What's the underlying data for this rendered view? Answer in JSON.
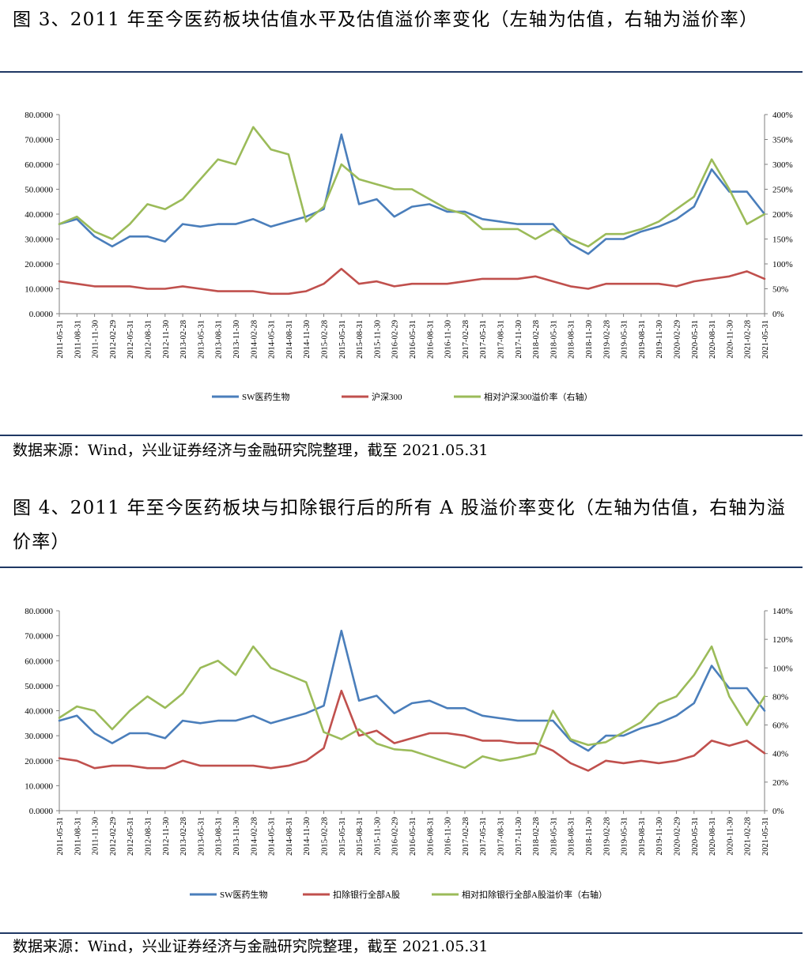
{
  "figures": [
    {
      "title": "图 3、2011 年至今医药板块估值水平及估值溢价率变化（左轴为估值，右轴为溢价率）",
      "source": "数据来源：Wind，兴业证券经济与金融研究院整理，截至 2021.05.31"
    },
    {
      "title": "图 4、2011 年至今医药板块与扣除银行后的所有 A 股溢价率变化（左轴为估值，右轴为溢价率）",
      "source": "数据来源：Wind，兴业证券经济与金融研究院整理，截至 2021.05.31"
    }
  ],
  "chart_data": [
    {
      "type": "line",
      "x": [
        "2011-05-31",
        "2011-08-31",
        "2011-11-30",
        "2012-02-29",
        "2012-05-31",
        "2012-08-31",
        "2012-11-30",
        "2013-02-28",
        "2013-05-31",
        "2013-08-31",
        "2013-11-30",
        "2014-02-28",
        "2014-05-31",
        "2014-08-31",
        "2014-11-30",
        "2015-02-28",
        "2015-05-31",
        "2015-08-31",
        "2015-11-30",
        "2016-02-29",
        "2016-05-31",
        "2016-08-31",
        "2016-11-30",
        "2017-02-28",
        "2017-05-31",
        "2017-08-31",
        "2017-11-30",
        "2018-02-28",
        "2018-05-31",
        "2018-08-31",
        "2018-11-30",
        "2019-02-28",
        "2019-05-31",
        "2019-08-31",
        "2019-11-30",
        "2020-02-29",
        "2020-05-31",
        "2020-08-31",
        "2020-11-30",
        "2021-02-28",
        "2021-05-31"
      ],
      "series": [
        {
          "name": "SW医药生物",
          "axis": "left",
          "color": "#4a7ebb",
          "values": [
            36,
            38,
            31,
            27,
            31,
            31,
            29,
            36,
            35,
            36,
            36,
            38,
            35,
            37,
            39,
            42,
            72,
            44,
            46,
            39,
            43,
            44,
            41,
            41,
            38,
            37,
            36,
            36,
            36,
            28,
            24,
            30,
            30,
            33,
            35,
            38,
            43,
            58,
            49,
            49,
            40
          ]
        },
        {
          "name": "沪深300",
          "axis": "left",
          "color": "#c0504d",
          "values": [
            13,
            12,
            11,
            11,
            11,
            10,
            10,
            11,
            10,
            9,
            9,
            9,
            8,
            8,
            9,
            12,
            18,
            12,
            13,
            11,
            12,
            12,
            12,
            13,
            14,
            14,
            14,
            15,
            13,
            11,
            10,
            12,
            12,
            12,
            12,
            11,
            13,
            14,
            15,
            17,
            14
          ]
        },
        {
          "name": "相对沪深300溢价率（右轴）",
          "axis": "right",
          "color": "#9bbb59",
          "values": [
            1.8,
            1.95,
            1.65,
            1.5,
            1.8,
            2.2,
            2.1,
            2.3,
            2.7,
            3.1,
            3.0,
            3.75,
            3.3,
            3.2,
            1.85,
            2.15,
            3.0,
            2.7,
            2.6,
            2.5,
            2.5,
            2.3,
            2.1,
            2.0,
            1.7,
            1.7,
            1.7,
            1.5,
            1.7,
            1.5,
            1.35,
            1.6,
            1.6,
            1.7,
            1.85,
            2.1,
            2.35,
            3.1,
            2.5,
            1.8,
            2.0
          ]
        }
      ],
      "left_axis": {
        "min": 0,
        "max": 80,
        "ticks": [
          "0.0000",
          "10.0000",
          "20.0000",
          "30.0000",
          "40.0000",
          "50.0000",
          "60.0000",
          "70.0000",
          "80.0000"
        ]
      },
      "right_axis": {
        "min": 0,
        "max": 4,
        "ticks": [
          "0%",
          "50%",
          "100%",
          "150%",
          "200%",
          "250%",
          "300%",
          "350%",
          "400%"
        ]
      },
      "legend": [
        "SW医药生物",
        "沪深300",
        "相对沪深300溢价率（右轴）"
      ],
      "legend_position": "bottom",
      "grid": false
    },
    {
      "type": "line",
      "x": [
        "2011-05-31",
        "2011-08-31",
        "2011-11-30",
        "2012-02-29",
        "2012-05-31",
        "2012-08-31",
        "2012-11-30",
        "2013-02-28",
        "2013-05-31",
        "2013-08-31",
        "2013-11-30",
        "2014-02-28",
        "2014-05-31",
        "2014-08-31",
        "2014-11-30",
        "2015-02-28",
        "2015-05-31",
        "2015-08-31",
        "2015-11-30",
        "2016-02-29",
        "2016-05-31",
        "2016-08-31",
        "2016-11-30",
        "2017-02-28",
        "2017-05-31",
        "2017-08-31",
        "2017-11-30",
        "2018-02-28",
        "2018-05-31",
        "2018-08-31",
        "2018-11-30",
        "2019-02-28",
        "2019-05-31",
        "2019-08-31",
        "2019-11-30",
        "2020-02-29",
        "2020-05-31",
        "2020-08-31",
        "2020-11-30",
        "2021-02-28",
        "2021-05-31"
      ],
      "series": [
        {
          "name": "SW医药生物",
          "axis": "left",
          "color": "#4a7ebb",
          "values": [
            36,
            38,
            31,
            27,
            31,
            31,
            29,
            36,
            35,
            36,
            36,
            38,
            35,
            37,
            39,
            42,
            72,
            44,
            46,
            39,
            43,
            44,
            41,
            41,
            38,
            37,
            36,
            36,
            36,
            28,
            24,
            30,
            30,
            33,
            35,
            38,
            43,
            58,
            49,
            49,
            40
          ]
        },
        {
          "name": "扣除银行全部A股",
          "axis": "left",
          "color": "#c0504d",
          "values": [
            21,
            20,
            17,
            18,
            18,
            17,
            17,
            20,
            18,
            18,
            18,
            18,
            17,
            18,
            20,
            25,
            48,
            30,
            32,
            27,
            29,
            31,
            31,
            30,
            28,
            28,
            27,
            27,
            24,
            19,
            16,
            20,
            19,
            20,
            19,
            20,
            22,
            28,
            26,
            28,
            23
          ]
        },
        {
          "name": "相对扣除银行全部A股溢价率（右轴）",
          "axis": "right",
          "color": "#9bbb59",
          "values": [
            0.65,
            0.73,
            0.7,
            0.57,
            0.7,
            0.8,
            0.72,
            0.82,
            1.0,
            1.05,
            0.95,
            1.15,
            1.0,
            0.95,
            0.9,
            0.55,
            0.5,
            0.57,
            0.47,
            0.43,
            0.42,
            0.38,
            0.34,
            0.3,
            0.38,
            0.35,
            0.37,
            0.4,
            0.7,
            0.5,
            0.46,
            0.48,
            0.55,
            0.62,
            0.75,
            0.8,
            0.95,
            1.15,
            0.8,
            0.6,
            0.8
          ]
        }
      ],
      "left_axis": {
        "min": 0,
        "max": 80,
        "ticks": [
          "0.0000",
          "10.0000",
          "20.0000",
          "30.0000",
          "40.0000",
          "50.0000",
          "60.0000",
          "70.0000",
          "80.0000"
        ]
      },
      "right_axis": {
        "min": 0,
        "max": 1.4,
        "ticks": [
          "0%",
          "20%",
          "40%",
          "60%",
          "80%",
          "100%",
          "120%",
          "140%"
        ]
      },
      "legend": [
        "SW医药生物",
        "扣除银行全部A股",
        "相对扣除银行全部A股溢价率（右轴）"
      ],
      "legend_position": "bottom",
      "grid": false
    }
  ]
}
